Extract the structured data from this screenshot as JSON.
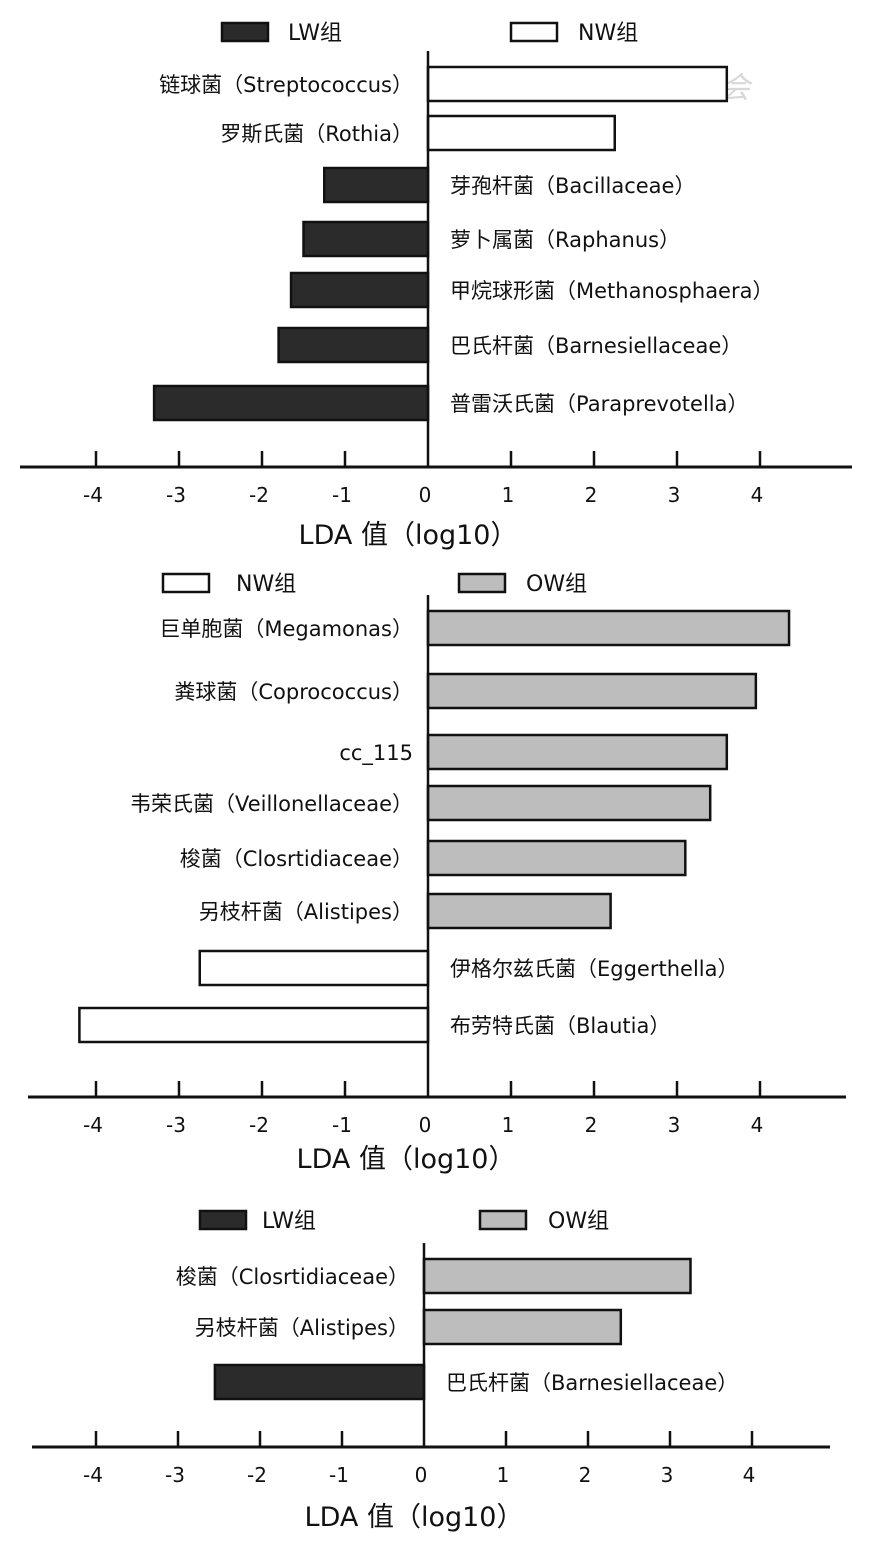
{
  "watermark": "中华医学会",
  "colors": {
    "LW": "#2b2b2b",
    "NW": "#ffffff",
    "OW": "#bdbdbd",
    "stroke": "#111111"
  },
  "chart_data": [
    {
      "type": "bar",
      "orientation": "horizontal",
      "legend": [
        {
          "group": "LW",
          "label": "LW组"
        },
        {
          "group": "NW",
          "label": "NW组"
        }
      ],
      "categories": [
        "链球菌（Streptococcus）",
        "罗斯氏菌（Rothia）",
        "芽孢杆菌（Bacillaceae）",
        "萝卜属菌（Raphanus）",
        "甲烷球形菌（Methanosphaera）",
        "巴氏杆菌（Barnesiellaceae）",
        "普雷沃氏菌（Paraprevotella）"
      ],
      "values": [
        3.6,
        2.25,
        -1.25,
        -1.5,
        -1.65,
        -1.8,
        -3.3
      ],
      "groups": [
        "NW",
        "NW",
        "LW",
        "LW",
        "LW",
        "LW",
        "LW"
      ],
      "xlabel": "LDA 值（log10）",
      "xticks": [
        -4,
        -3,
        -2,
        -1,
        0,
        1,
        2,
        3,
        4
      ],
      "xlim": [
        -5.1,
        5.3
      ]
    },
    {
      "type": "bar",
      "orientation": "horizontal",
      "legend": [
        {
          "group": "NW",
          "label": "NW组"
        },
        {
          "group": "OW",
          "label": "OW组"
        }
      ],
      "categories": [
        "巨单胞菌（Megamonas）",
        "粪球菌（Coprococcus）",
        "cc_115",
        "韦荣氏菌（Veillonellaceae）",
        "梭菌（Closrtidiaceae）",
        "另枝杆菌（Alistipes）",
        "伊格尔兹氏菌（Eggerthella）",
        "布劳特氏菌（Blautia）"
      ],
      "values": [
        4.35,
        3.95,
        3.6,
        3.4,
        3.1,
        2.2,
        -2.75,
        -4.2
      ],
      "groups": [
        "OW",
        "OW",
        "OW",
        "OW",
        "OW",
        "OW",
        "NW",
        "NW"
      ],
      "xlabel": "LDA 值（log10）",
      "xticks": [
        -4,
        -3,
        -2,
        -1,
        0,
        1,
        2,
        3,
        4
      ],
      "xlim": [
        -4.9,
        5.0
      ]
    },
    {
      "type": "bar",
      "orientation": "horizontal",
      "legend": [
        {
          "group": "LW",
          "label": "LW组"
        },
        {
          "group": "OW",
          "label": "OW组"
        }
      ],
      "categories": [
        "梭菌（Closrtidiaceae）",
        "另枝杆菌（Alistipes）",
        "巴氏杆菌（Barnesiellaceae）"
      ],
      "values": [
        3.25,
        2.4,
        -2.55
      ],
      "groups": [
        "OW",
        "OW",
        "LW"
      ],
      "xlabel": "LDA 值（log10）",
      "xticks": [
        -4,
        -3,
        -2,
        -1,
        0,
        1,
        2,
        3,
        4
      ],
      "xlim": [
        -4.8,
        5.0
      ]
    }
  ]
}
